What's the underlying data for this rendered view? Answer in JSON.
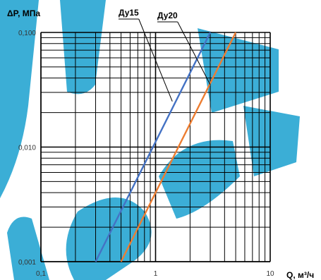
{
  "chart_data": {
    "type": "line",
    "xlabel": "Q, м³/ч",
    "ylabel": "ΔP, МПа",
    "x_scale": "log",
    "y_scale": "log",
    "xlim": [
      0.1,
      10
    ],
    "ylim": [
      0.001,
      0.1
    ],
    "grid": true,
    "x_ticks": [
      {
        "value": 0.1,
        "label": "0,1"
      },
      {
        "value": 1,
        "label": "1"
      },
      {
        "value": 10,
        "label": "10"
      }
    ],
    "y_ticks": [
      {
        "value": 0.001,
        "label": "0,001"
      },
      {
        "value": 0.01,
        "label": "0,010"
      },
      {
        "value": 0.1,
        "label": "0,100"
      }
    ],
    "series": [
      {
        "name": "Ду15",
        "color": "#4472C4",
        "x": [
          0.3,
          3.0
        ],
        "y": [
          0.001,
          0.1
        ],
        "label_at": {
          "x": 1.4,
          "y": 0.025
        }
      },
      {
        "name": "Ду20",
        "color": "#ED7D31",
        "x": [
          0.5,
          5.0
        ],
        "y": [
          0.001,
          0.1
        ],
        "label_at": {
          "x": 3.0,
          "y": 0.035
        }
      }
    ]
  },
  "colors": {
    "grid": "#000000",
    "watermark": "#1AA0D0"
  }
}
